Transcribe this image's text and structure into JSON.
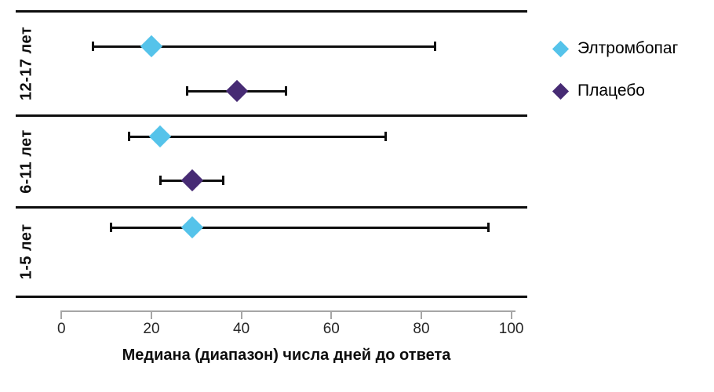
{
  "chart_data": {
    "type": "scatter",
    "subtype": "forest-plot-error-bars",
    "title": "",
    "xlabel": "Медиана (диапазон) числа дней до ответа",
    "ylabel": "",
    "xlim": [
      0,
      100
    ],
    "xticks": [
      0,
      20,
      40,
      60,
      80,
      100
    ],
    "grid": false,
    "legend_position": "right",
    "marker_shape": "diamond",
    "series_meta": [
      {
        "name": "Элтромбопаг",
        "color": "#55C3EA",
        "marker": "diamond"
      },
      {
        "name": "Плацебо",
        "color": "#472B74",
        "marker": "diamond"
      }
    ],
    "groups": [
      {
        "label": "12-17 лет",
        "points": [
          {
            "series": "Элтромбопаг",
            "median": 20,
            "range": [
              7,
              83
            ]
          },
          {
            "series": "Плацебо",
            "median": 39,
            "range": [
              28,
              50
            ]
          }
        ]
      },
      {
        "label": "6-11 лет",
        "points": [
          {
            "series": "Элтромбопаг",
            "median": 22,
            "range": [
              15,
              72
            ]
          },
          {
            "series": "Плацебо",
            "median": 29,
            "range": [
              22,
              36
            ]
          }
        ]
      },
      {
        "label": "1-5 лет",
        "points": [
          {
            "series": "Элтромбопаг",
            "median": 29,
            "range": [
              11,
              95
            ]
          }
        ]
      }
    ]
  }
}
